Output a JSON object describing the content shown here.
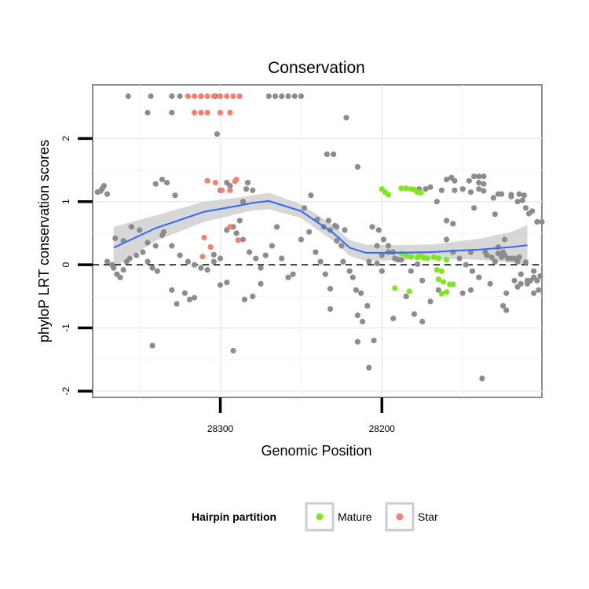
{
  "chart_data": {
    "type": "scatter",
    "title": "Conservation",
    "xlabel": "Genomic Position",
    "ylabel": "phyloP LRT conservation scores",
    "x_reversed": true,
    "xlim": [
      28379,
      28101
    ],
    "ylim": [
      -2.1,
      2.85
    ],
    "x_ticks": [
      28300,
      28200
    ],
    "y_ticks": [
      -2,
      -1,
      0,
      1,
      2
    ],
    "grid": true,
    "reference_line": {
      "y": 0,
      "style": "dashed",
      "color": "#000000"
    },
    "legend": {
      "title": "Hairpin partition",
      "position": "bottom",
      "entries": [
        {
          "label": "Mature",
          "color": "#7fe81c"
        },
        {
          "label": "Star",
          "color": "#f57f72"
        }
      ]
    },
    "colors": {
      "other": "#8c8c8c",
      "Mature": "#7fe81c",
      "Star": "#f57f72",
      "smooth": "#3366ff",
      "band": "#d3d3d3"
    },
    "smooth": {
      "x": [
        28366,
        28340,
        28310,
        28290,
        28280,
        28270,
        28250,
        28230,
        28220,
        28210,
        28195,
        28170,
        28150,
        28140,
        28120,
        28110
      ],
      "y": [
        0.27,
        0.58,
        0.84,
        0.93,
        0.98,
        1.01,
        0.85,
        0.5,
        0.27,
        0.19,
        0.19,
        0.2,
        0.23,
        0.24,
        0.28,
        0.31
      ],
      "lower": [
        -0.05,
        0.38,
        0.68,
        0.8,
        0.86,
        0.88,
        0.74,
        0.38,
        0.14,
        0.06,
        0.07,
        0.08,
        0.09,
        0.08,
        0.03,
        0.0
      ],
      "upper": [
        0.6,
        0.78,
        1.0,
        1.06,
        1.1,
        1.14,
        0.96,
        0.62,
        0.39,
        0.32,
        0.31,
        0.32,
        0.38,
        0.41,
        0.52,
        0.63
      ]
    },
    "series": [
      {
        "name": "Mature",
        "points": [
          [
            28188,
            1.21
          ],
          [
            28185,
            1.21
          ],
          [
            28182,
            1.2
          ],
          [
            28180,
            1.19
          ],
          [
            28178,
            1.15
          ],
          [
            28176,
            1.14
          ],
          [
            28200,
            1.2
          ],
          [
            28198,
            1.15
          ],
          [
            28196,
            1.11
          ],
          [
            28188,
            0.18
          ],
          [
            28185,
            0.15
          ],
          [
            28182,
            0.13
          ],
          [
            28178,
            0.12
          ],
          [
            28176,
            0.14
          ],
          [
            28174,
            0.11
          ],
          [
            28172,
            0.1
          ],
          [
            28168,
            0.12
          ],
          [
            28165,
            0.1
          ],
          [
            28160,
            0.08
          ],
          [
            28166,
            -0.08
          ],
          [
            28163,
            -0.1
          ],
          [
            28165,
            -0.23
          ],
          [
            28162,
            -0.27
          ],
          [
            28158,
            -0.31
          ],
          [
            28156,
            -0.31
          ],
          [
            28183,
            -0.42
          ],
          [
            28160,
            -0.43
          ],
          [
            28163,
            -0.46
          ],
          [
            28192,
            -0.37
          ]
        ]
      },
      {
        "name": "Star",
        "points": [
          [
            28320,
            2.67
          ],
          [
            28316,
            2.67
          ],
          [
            28312,
            2.67
          ],
          [
            28308,
            2.67
          ],
          [
            28304,
            2.67
          ],
          [
            28300,
            2.67
          ],
          [
            28296,
            2.67
          ],
          [
            28292,
            2.67
          ],
          [
            28288,
            2.67
          ],
          [
            28316,
            2.41
          ],
          [
            28312,
            2.41
          ],
          [
            28308,
            2.41
          ],
          [
            28300,
            2.41
          ],
          [
            28294,
            2.41
          ],
          [
            28308,
            1.33
          ],
          [
            28303,
            1.3
          ],
          [
            28299,
            1.18
          ],
          [
            28294,
            1.18
          ],
          [
            28290,
            1.35
          ],
          [
            28291,
            1.32
          ],
          [
            28310,
            0.43
          ],
          [
            28306,
            0.28
          ],
          [
            28311,
            0.13
          ],
          [
            28294,
            0.6
          ],
          [
            28289,
            0.39
          ]
        ]
      },
      {
        "name": "other",
        "points": [
          [
            28373,
            1.21
          ],
          [
            28372,
            1.25
          ],
          [
            28374,
            1.17
          ],
          [
            28370,
            1.12
          ],
          [
            28376,
            1.15
          ],
          [
            28365,
            0.42
          ],
          [
            28360,
            0.38
          ],
          [
            28355,
            0.6
          ],
          [
            28350,
            0.55
          ],
          [
            28345,
            0.35
          ],
          [
            28340,
            0.3
          ],
          [
            28336,
            0.47
          ],
          [
            28370,
            0.05
          ],
          [
            28367,
            0.0
          ],
          [
            28366,
            -0.05
          ],
          [
            28364,
            -0.15
          ],
          [
            28362,
            -0.2
          ],
          [
            28360,
            -0.08
          ],
          [
            28358,
            0.05
          ],
          [
            28356,
            0.1
          ],
          [
            28352,
            0.15
          ],
          [
            28348,
            0.2
          ],
          [
            28345,
            0.05
          ],
          [
            28342,
            -0.05
          ],
          [
            28339,
            -0.1
          ],
          [
            28357,
            2.67
          ],
          [
            28343,
            2.67
          ],
          [
            28330,
            2.67
          ],
          [
            28325,
            2.67
          ],
          [
            28312,
            2.67
          ],
          [
            28303,
            2.67
          ],
          [
            28270,
            2.67
          ],
          [
            28266,
            2.67
          ],
          [
            28262,
            2.67
          ],
          [
            28258,
            2.67
          ],
          [
            28254,
            2.67
          ],
          [
            28250,
            2.67
          ],
          [
            28345,
            2.41
          ],
          [
            28330,
            2.41
          ],
          [
            28340,
            1.28
          ],
          [
            28336,
            1.35
          ],
          [
            28333,
            1.3
          ],
          [
            28328,
            1.1
          ],
          [
            28342,
            -1.28
          ],
          [
            28335,
            0.52
          ],
          [
            28330,
            0.3
          ],
          [
            28325,
            0.15
          ],
          [
            28320,
            0.05
          ],
          [
            28316,
            0.0
          ],
          [
            28330,
            -0.4
          ],
          [
            28327,
            -0.62
          ],
          [
            28322,
            -0.45
          ],
          [
            28319,
            -0.55
          ],
          [
            28316,
            -0.52
          ],
          [
            28312,
            -0.05
          ],
          [
            28308,
            -0.08
          ],
          [
            28304,
            0.05
          ],
          [
            28300,
            0.1
          ],
          [
            28296,
            0.55
          ],
          [
            28292,
            0.6
          ],
          [
            28288,
            0.7
          ],
          [
            28286,
            1.0
          ],
          [
            28284,
            1.2
          ],
          [
            28283,
            1.3
          ],
          [
            28280,
            1.18
          ],
          [
            28302,
            2.07
          ],
          [
            28300,
            1.18
          ],
          [
            28296,
            1.3
          ],
          [
            28294,
            1.25
          ],
          [
            28304,
            0.16
          ],
          [
            28300,
            -0.32
          ],
          [
            28296,
            -0.28
          ],
          [
            28292,
            -1.36
          ],
          [
            28290,
            0.5
          ],
          [
            28286,
            0.4
          ],
          [
            28282,
            0.2
          ],
          [
            28278,
            0.1
          ],
          [
            28275,
            -0.05
          ],
          [
            28285,
            -0.55
          ],
          [
            28280,
            -0.5
          ],
          [
            28275,
            -0.3
          ],
          [
            28272,
            0.15
          ],
          [
            28268,
            0.3
          ],
          [
            28265,
            0.6
          ],
          [
            28262,
            0.1
          ],
          [
            28258,
            -0.2
          ],
          [
            28255,
            -0.15
          ],
          [
            28250,
            0.4
          ],
          [
            28248,
            0.9
          ],
          [
            28244,
            1.1
          ],
          [
            28240,
            0.72
          ],
          [
            28236,
            0.6
          ],
          [
            28232,
            0.55
          ],
          [
            28228,
            0.38
          ],
          [
            28245,
            0.52
          ],
          [
            28241,
            0.2
          ],
          [
            28238,
            0.05
          ],
          [
            28235,
            -0.15
          ],
          [
            28232,
            -0.38
          ],
          [
            28233,
            0.7
          ],
          [
            28229,
            0.62
          ],
          [
            28225,
            0.3
          ],
          [
            28223,
            0.55
          ],
          [
            28234,
            1.75
          ],
          [
            28230,
            1.75
          ],
          [
            28222,
            2.33
          ],
          [
            28215,
            1.55
          ],
          [
            28232,
            -0.7
          ],
          [
            28228,
            0.6
          ],
          [
            28224,
            0.05
          ],
          [
            28220,
            -0.1
          ],
          [
            28216,
            -0.4
          ],
          [
            28213,
            -0.45
          ],
          [
            28209,
            -0.65
          ],
          [
            28205,
            -1.2
          ],
          [
            28218,
            -0.2
          ],
          [
            28215,
            -0.8
          ],
          [
            28212,
            -0.9
          ],
          [
            28208,
            0.05
          ],
          [
            28203,
            0.02
          ],
          [
            28200,
            -0.1
          ],
          [
            28203,
            0.3
          ],
          [
            28200,
            0.15
          ],
          [
            28196,
            0.2
          ],
          [
            28192,
            0.1
          ],
          [
            28215,
            -1.22
          ],
          [
            28208,
            -1.63
          ],
          [
            28193,
            -0.85
          ],
          [
            28188,
            0.08
          ],
          [
            28182,
            -0.1
          ],
          [
            28178,
            0.01
          ],
          [
            28150,
            1.2
          ],
          [
            28145,
            1.15
          ],
          [
            28140,
            1.2
          ],
          [
            28137,
            1.17
          ],
          [
            28143,
            1.4
          ],
          [
            28140,
            1.4
          ],
          [
            28137,
            1.4
          ],
          [
            28146,
            1.33
          ],
          [
            28140,
            1.3
          ],
          [
            28137,
            1.28
          ],
          [
            28155,
            1.18
          ],
          [
            28150,
            1.2
          ],
          [
            28143,
            0.9
          ],
          [
            28155,
            1.33
          ],
          [
            28157,
            1.38
          ],
          [
            28160,
            1.35
          ],
          [
            28163,
            1.18
          ],
          [
            28166,
            1.0
          ],
          [
            28170,
            1.23
          ],
          [
            28173,
            1.2
          ],
          [
            28177,
            1.2
          ],
          [
            28160,
            0.4
          ],
          [
            28156,
            0.2
          ],
          [
            28152,
            0.1
          ],
          [
            28148,
            0.0
          ],
          [
            28144,
            -0.1
          ],
          [
            28140,
            -0.2
          ],
          [
            28136,
            0.2
          ],
          [
            28132,
            0.12
          ],
          [
            28128,
            0.18
          ],
          [
            28124,
            0.15
          ],
          [
            28120,
            0.1
          ],
          [
            28116,
            0.05
          ],
          [
            28160,
            0.7
          ],
          [
            28156,
            0.65
          ],
          [
            28170,
            -0.58
          ],
          [
            28165,
            -0.4
          ],
          [
            28150,
            -0.45
          ],
          [
            28145,
            0.2
          ],
          [
            28140,
            -0.2
          ],
          [
            28133,
            -0.3
          ],
          [
            28130,
            0.8
          ],
          [
            28126,
            0.12
          ],
          [
            28124,
            0.4
          ],
          [
            28120,
            1.08
          ],
          [
            28116,
            1.0
          ],
          [
            28113,
            1.02
          ],
          [
            28111,
            0.9
          ],
          [
            28107,
            0.85
          ],
          [
            28104,
            0.68
          ],
          [
            28101,
            0.68
          ],
          [
            28118,
            -0.25
          ],
          [
            28114,
            -0.15
          ],
          [
            28110,
            -0.3
          ],
          [
            28106,
            -0.2
          ],
          [
            28103,
            -0.4
          ],
          [
            28125,
            -0.65
          ],
          [
            28123,
            -0.72
          ],
          [
            28123,
            -0.45
          ],
          [
            28116,
            -0.35
          ],
          [
            28114,
            -0.3
          ],
          [
            28111,
            0.04
          ],
          [
            28120,
            1.11
          ],
          [
            28126,
            1.12
          ],
          [
            28128,
            1.12
          ],
          [
            28131,
            1.06
          ],
          [
            28115,
            1.12
          ],
          [
            28112,
            1.1
          ],
          [
            28109,
            0.81
          ],
          [
            28135,
            0.15
          ],
          [
            28130,
            0.05
          ],
          [
            28128,
            0.28
          ],
          [
            28125,
            0.2
          ],
          [
            28122,
            0.1
          ],
          [
            28118,
            0.1
          ],
          [
            28115,
            0.12
          ],
          [
            28180,
            -0.78
          ],
          [
            28175,
            -0.9
          ],
          [
            28185,
            -0.5
          ],
          [
            28175,
            -0.25
          ],
          [
            28145,
            -0.4
          ],
          [
            28138,
            -1.8
          ],
          [
            28106,
            -0.45
          ],
          [
            28102,
            -0.18
          ],
          [
            28104,
            -0.25
          ],
          [
            28106,
            -0.1
          ],
          [
            28108,
            -0.25
          ],
          [
            28110,
            -0.25
          ],
          [
            28190,
            0.08
          ],
          [
            28193,
            0.2
          ],
          [
            28196,
            0.3
          ],
          [
            28199,
            0.4
          ],
          [
            28202,
            0.55
          ],
          [
            28206,
            0.6
          ]
        ]
      }
    ]
  }
}
